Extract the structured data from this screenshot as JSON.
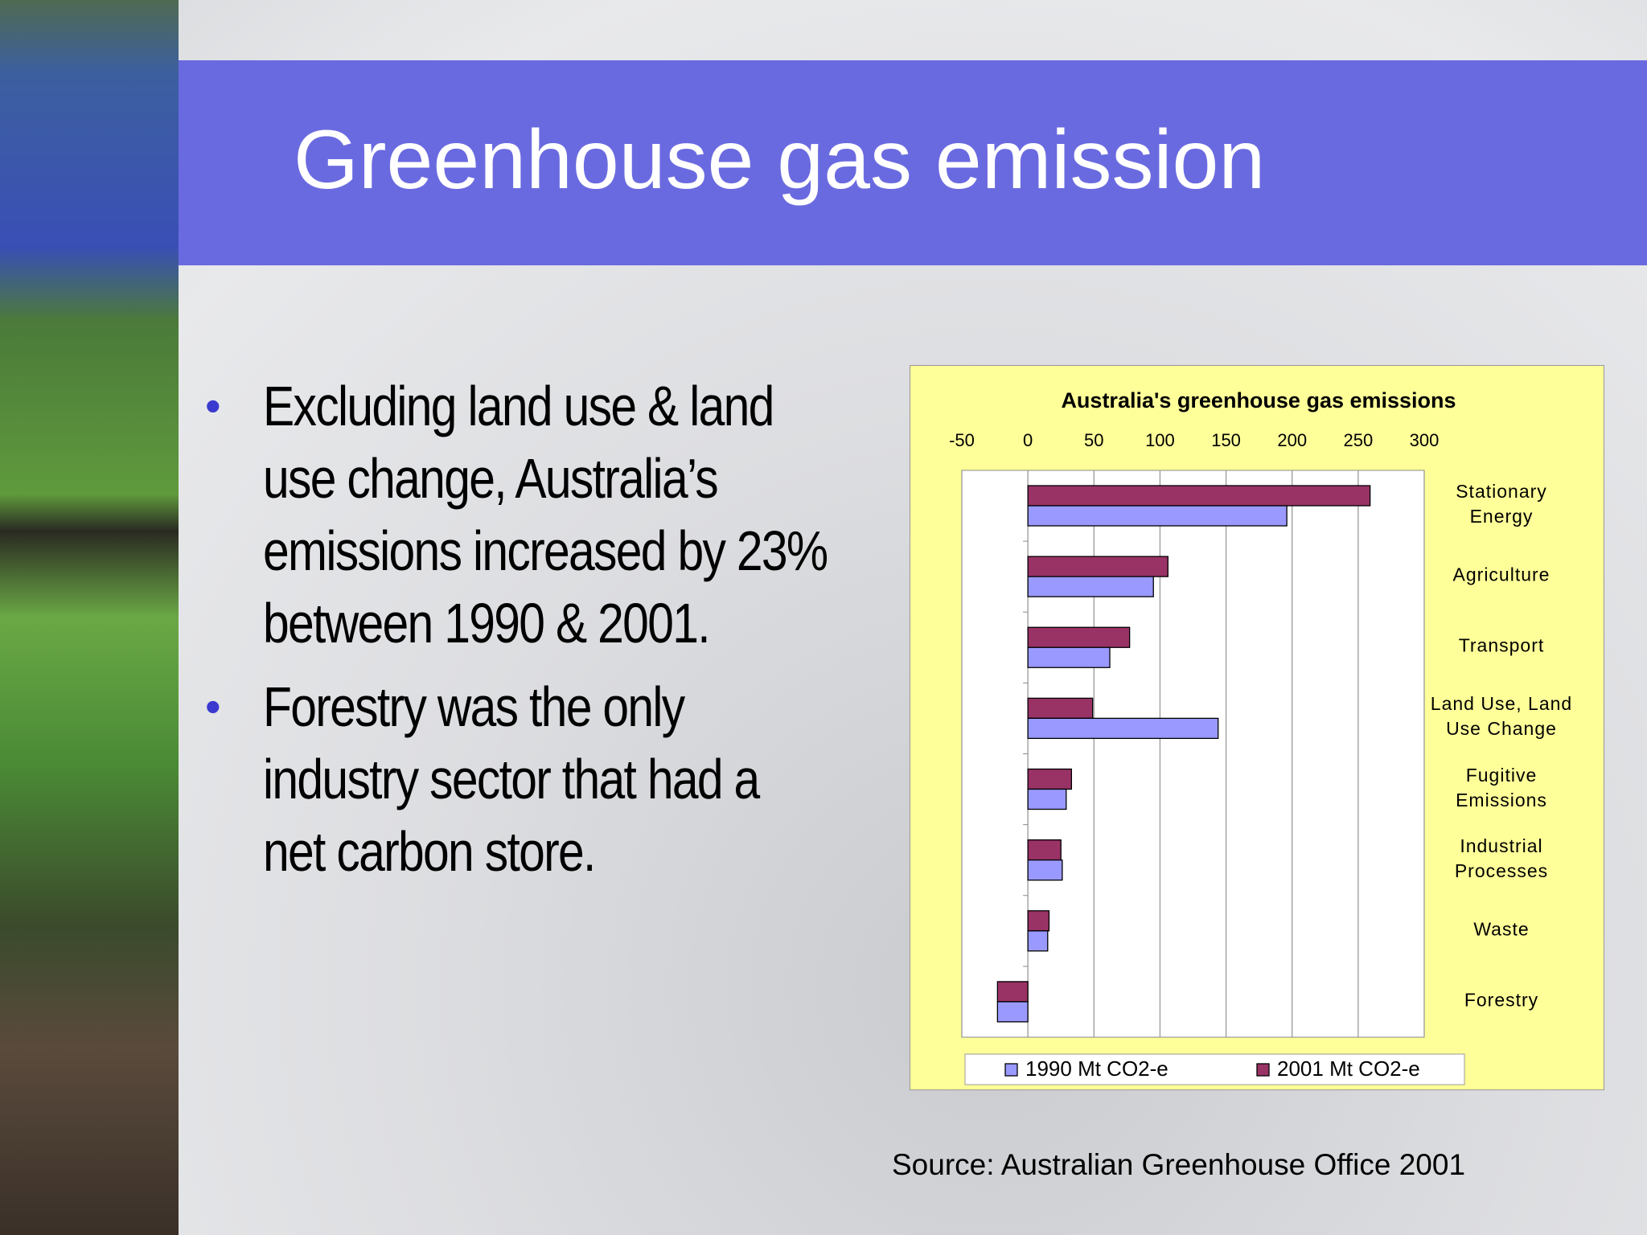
{
  "header": {
    "title": "Greenhouse gas emission"
  },
  "bullets": [
    "Excluding land use & land use change, Australia’s emissions increased by 23% between 1990 & 2001.",
    "Forestry was the only industry sector that had a net carbon store."
  ],
  "source": "Source: Australian Greenhouse Office 2001",
  "chart_data": {
    "type": "bar",
    "orientation": "horizontal",
    "title": "Australia's greenhouse gas emissions",
    "categories": [
      "Stationary Energy",
      "Agriculture",
      "Transport",
      "Land Use, Land Use Change",
      "Fugitive Emissions",
      "Industrial Processes",
      "Waste",
      "Forestry"
    ],
    "series": [
      {
        "name": "1990 Mt CO2-e",
        "color": "#9999ff",
        "values": [
          196,
          95,
          62,
          144,
          29,
          26,
          15,
          -23
        ]
      },
      {
        "name": "2001 Mt CO2-e",
        "color": "#993366",
        "values": [
          259,
          106,
          77,
          49,
          33,
          25,
          16,
          -23
        ]
      }
    ],
    "xlim": [
      -50,
      300
    ],
    "xticks": [
      -50,
      0,
      50,
      100,
      150,
      200,
      250,
      300
    ],
    "grid": true
  }
}
